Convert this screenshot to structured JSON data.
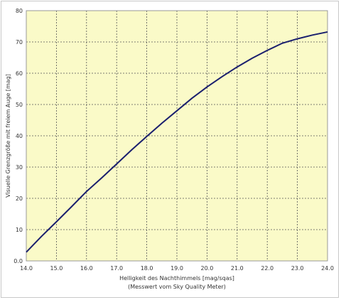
{
  "chart_data": {
    "type": "line",
    "xlabel": "Helligkeit des Nachthimmels [mag/sqas]",
    "xlabel_sub": "(Messwert vom Sky Quality Meter)",
    "ylabel": "Visuelle Grenzgröße mit freiem Auge [mag]",
    "xlim": [
      14.0,
      24.0
    ],
    "ylim": [
      0,
      80
    ],
    "x_ticks": [
      "14.0",
      "15.0",
      "16.0",
      "17.0",
      "18.0",
      "19.0",
      "20.0",
      "21.0",
      "22.0",
      "23.0",
      "24.0"
    ],
    "y_ticks": [
      "0.0",
      "10",
      "20",
      "30",
      "40",
      "50",
      "60",
      "70",
      "80"
    ],
    "grid": true,
    "background": "#fafac8",
    "line_color": "#1a1f6e",
    "series": [
      {
        "x": [
          14.0,
          14.5,
          15.0,
          15.5,
          16.0,
          16.5,
          17.0,
          17.5,
          18.0,
          18.5,
          19.0,
          19.5,
          20.0,
          20.5,
          21.0,
          21.5,
          22.0,
          22.5,
          23.0,
          23.5,
          24.0
        ],
        "y": [
          2.8,
          7.8,
          12.5,
          17.3,
          22.2,
          26.5,
          31.0,
          35.5,
          39.8,
          44.0,
          48.0,
          52.0,
          55.6,
          58.9,
          62.0,
          64.8,
          67.3,
          69.6,
          71.0,
          72.2,
          73.2
        ]
      }
    ]
  }
}
